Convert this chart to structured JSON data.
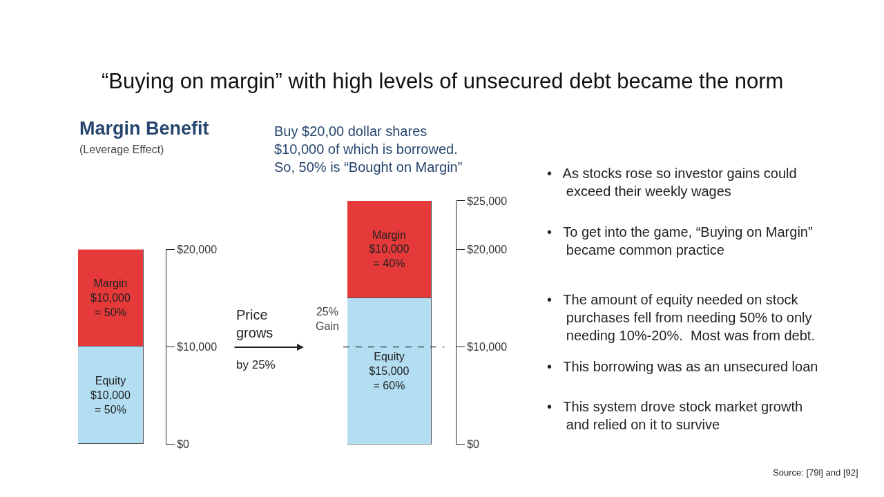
{
  "chart_data": [
    {
      "type": "bar",
      "stacked": true,
      "title": "“Buying on margin” with high levels of unsecured debt became the norm",
      "subtitle": "Margin Benefit",
      "categories": [
        null
      ],
      "series": [
        {
          "color": "#b3def2",
          "values": [
            10000
          ],
          "value_labels": [
            "Equity\n$10,000\n= 50%"
          ]
        },
        {
          "color": "#e5393a",
          "values": [
            10000
          ],
          "value_labels": [
            "Margin\n$10,000\n= 50%"
          ]
        }
      ],
      "ylim": [
        0,
        20000
      ],
      "yticks": [
        {
          "value": 0,
          "label": "$0"
        },
        {
          "value": 10000,
          "label": "$10,000"
        },
        {
          "value": 20000,
          "label": "$20,000"
        }
      ],
      "annotations": [
        "(Leverage Effect)",
        "Price\ngrows",
        "by 25%"
      ]
    },
    {
      "type": "bar",
      "stacked": true,
      "categories": [
        null
      ],
      "series": [
        {
          "color": "#b3def2",
          "values": [
            15000
          ],
          "value_labels": [
            "Equity\n$15,000\n= 60%"
          ]
        },
        {
          "color": "#e5393a",
          "values": [
            10000
          ],
          "value_labels": [
            "Margin\n$10,000\n= 40%"
          ]
        }
      ],
      "ylim": [
        0,
        25000
      ],
      "yticks": [
        {
          "value": 0,
          "label": "$0"
        },
        {
          "value": 10000,
          "label": "$10,000"
        },
        {
          "value": 20000,
          "label": "$20,000"
        },
        {
          "value": 25000,
          "label": "$25,000"
        }
      ],
      "ref_lines": [
        {
          "axis": "y",
          "value": 10000,
          "line_style": "dashed",
          "color": "#333333"
        }
      ],
      "annotations": [
        "25%\nGain",
        "Buy $20,00 dollar shares\n$10,000 of which is borrowed.\nSo, 50% is “Bought on Margin”",
        "•   As stocks rose so investor gains could\n     exceed their weekly wages",
        "•   To get into the game, “Buying on Margin”\n     became common practice",
        "•   The amount of equity needed on stock\n     purchases fell from needing 50% to only\n     needing 10%-20%.  Most was from debt.",
        "•   This borrowing was as an unsecured loan",
        "•   This system drove stock market growth\n     and relied on it to survive",
        "Source: [79l] and [92]"
      ]
    }
  ]
}
